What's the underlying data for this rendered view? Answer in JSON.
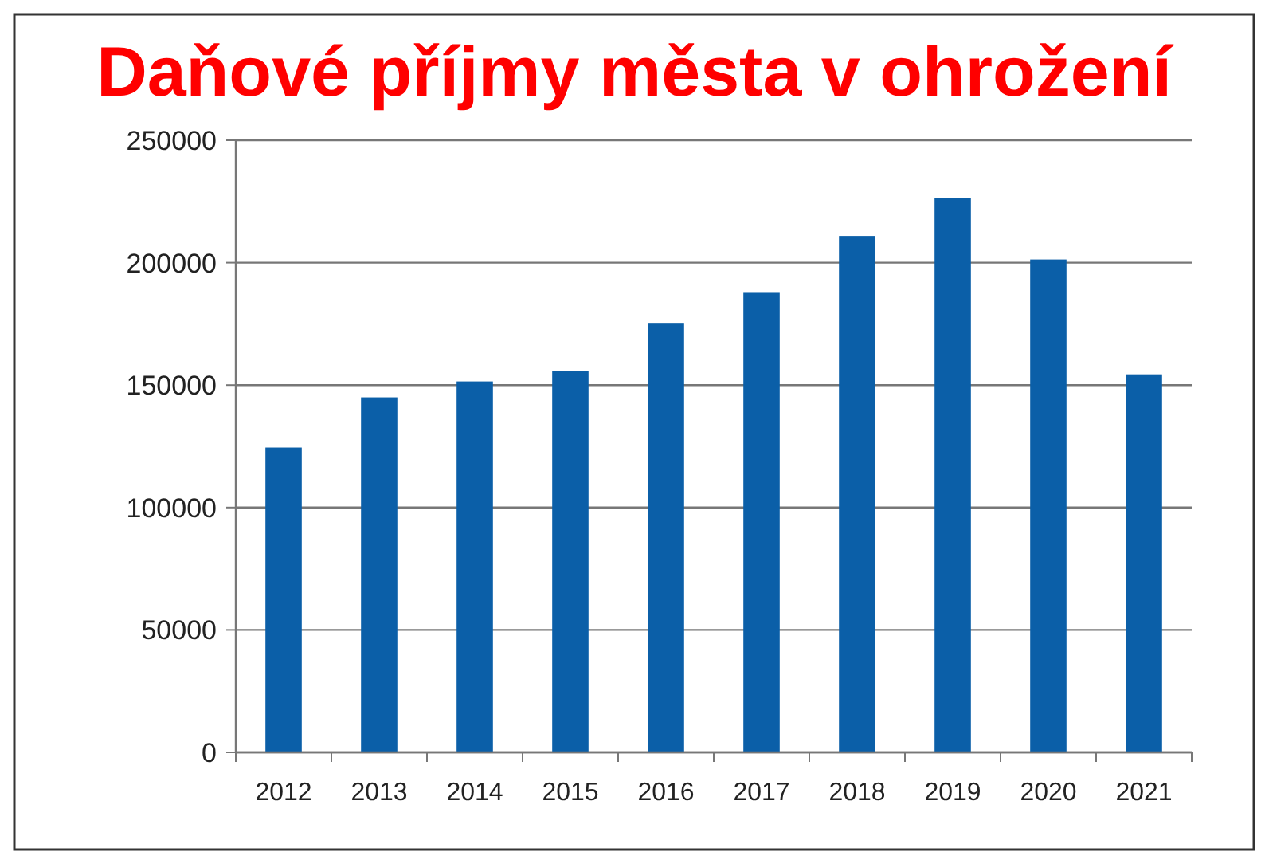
{
  "chart_data": {
    "type": "bar",
    "title": "Daňové příjmy města v ohrožení",
    "categories": [
      "2012",
      "2013",
      "2014",
      "2015",
      "2016",
      "2017",
      "2018",
      "2019",
      "2020",
      "2021"
    ],
    "values": [
      124500,
      145000,
      151500,
      155700,
      175400,
      188000,
      210900,
      226500,
      201300,
      154400
    ],
    "color": "#0b5fa8",
    "ylim": [
      0,
      250000
    ],
    "yticks": [
      0,
      50000,
      100000,
      150000,
      200000,
      250000
    ],
    "grid": "y"
  }
}
